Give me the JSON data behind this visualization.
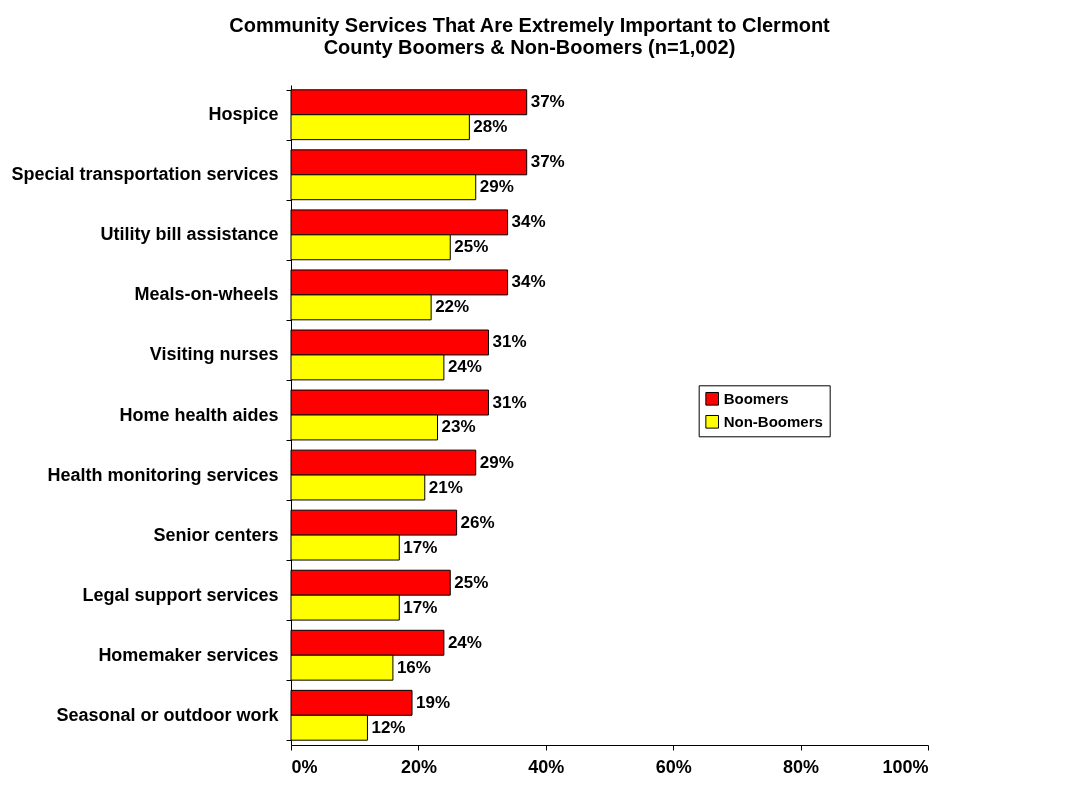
{
  "chart_data": {
    "type": "bar",
    "orientation": "horizontal",
    "title": "Community Services That Are Extremely Important to Clermont County Boomers & Non-Boomers (n=1,002)",
    "categories": [
      "Hospice",
      "Special transportation services",
      "Utility bill assistance",
      "Meals-on-wheels",
      "Visiting nurses",
      "Home health aides",
      "Health monitoring services",
      "Senior centers",
      "Legal support services",
      "Homemaker services",
      "Seasonal or outdoor work"
    ],
    "series": [
      {
        "name": "Boomers",
        "color": "#ff0000",
        "values": [
          37,
          37,
          34,
          34,
          31,
          31,
          29,
          26,
          25,
          24,
          19
        ],
        "value_labels": [
          "37%",
          "37%",
          "34%",
          "34%",
          "31%",
          "31%",
          "29%",
          "26%",
          "25%",
          "24%",
          "19%"
        ]
      },
      {
        "name": "Non-Boomers",
        "color": "#ffff00",
        "values": [
          28,
          29,
          25,
          22,
          24,
          23,
          21,
          17,
          17,
          16,
          12
        ],
        "value_labels": [
          "28%",
          "29%",
          "25%",
          "22%",
          "24%",
          "23%",
          "21%",
          "17%",
          "17%",
          "16%",
          "12%"
        ]
      }
    ],
    "xlim": [
      0,
      100
    ],
    "xticks": [
      {
        "value": 0,
        "label": "0%"
      },
      {
        "value": 20,
        "label": "20%"
      },
      {
        "value": 40,
        "label": "40%"
      },
      {
        "value": 60,
        "label": "60%"
      },
      {
        "value": 80,
        "label": "80%"
      },
      {
        "value": 100,
        "label": "100%"
      }
    ],
    "grid": false,
    "legend": "right"
  }
}
